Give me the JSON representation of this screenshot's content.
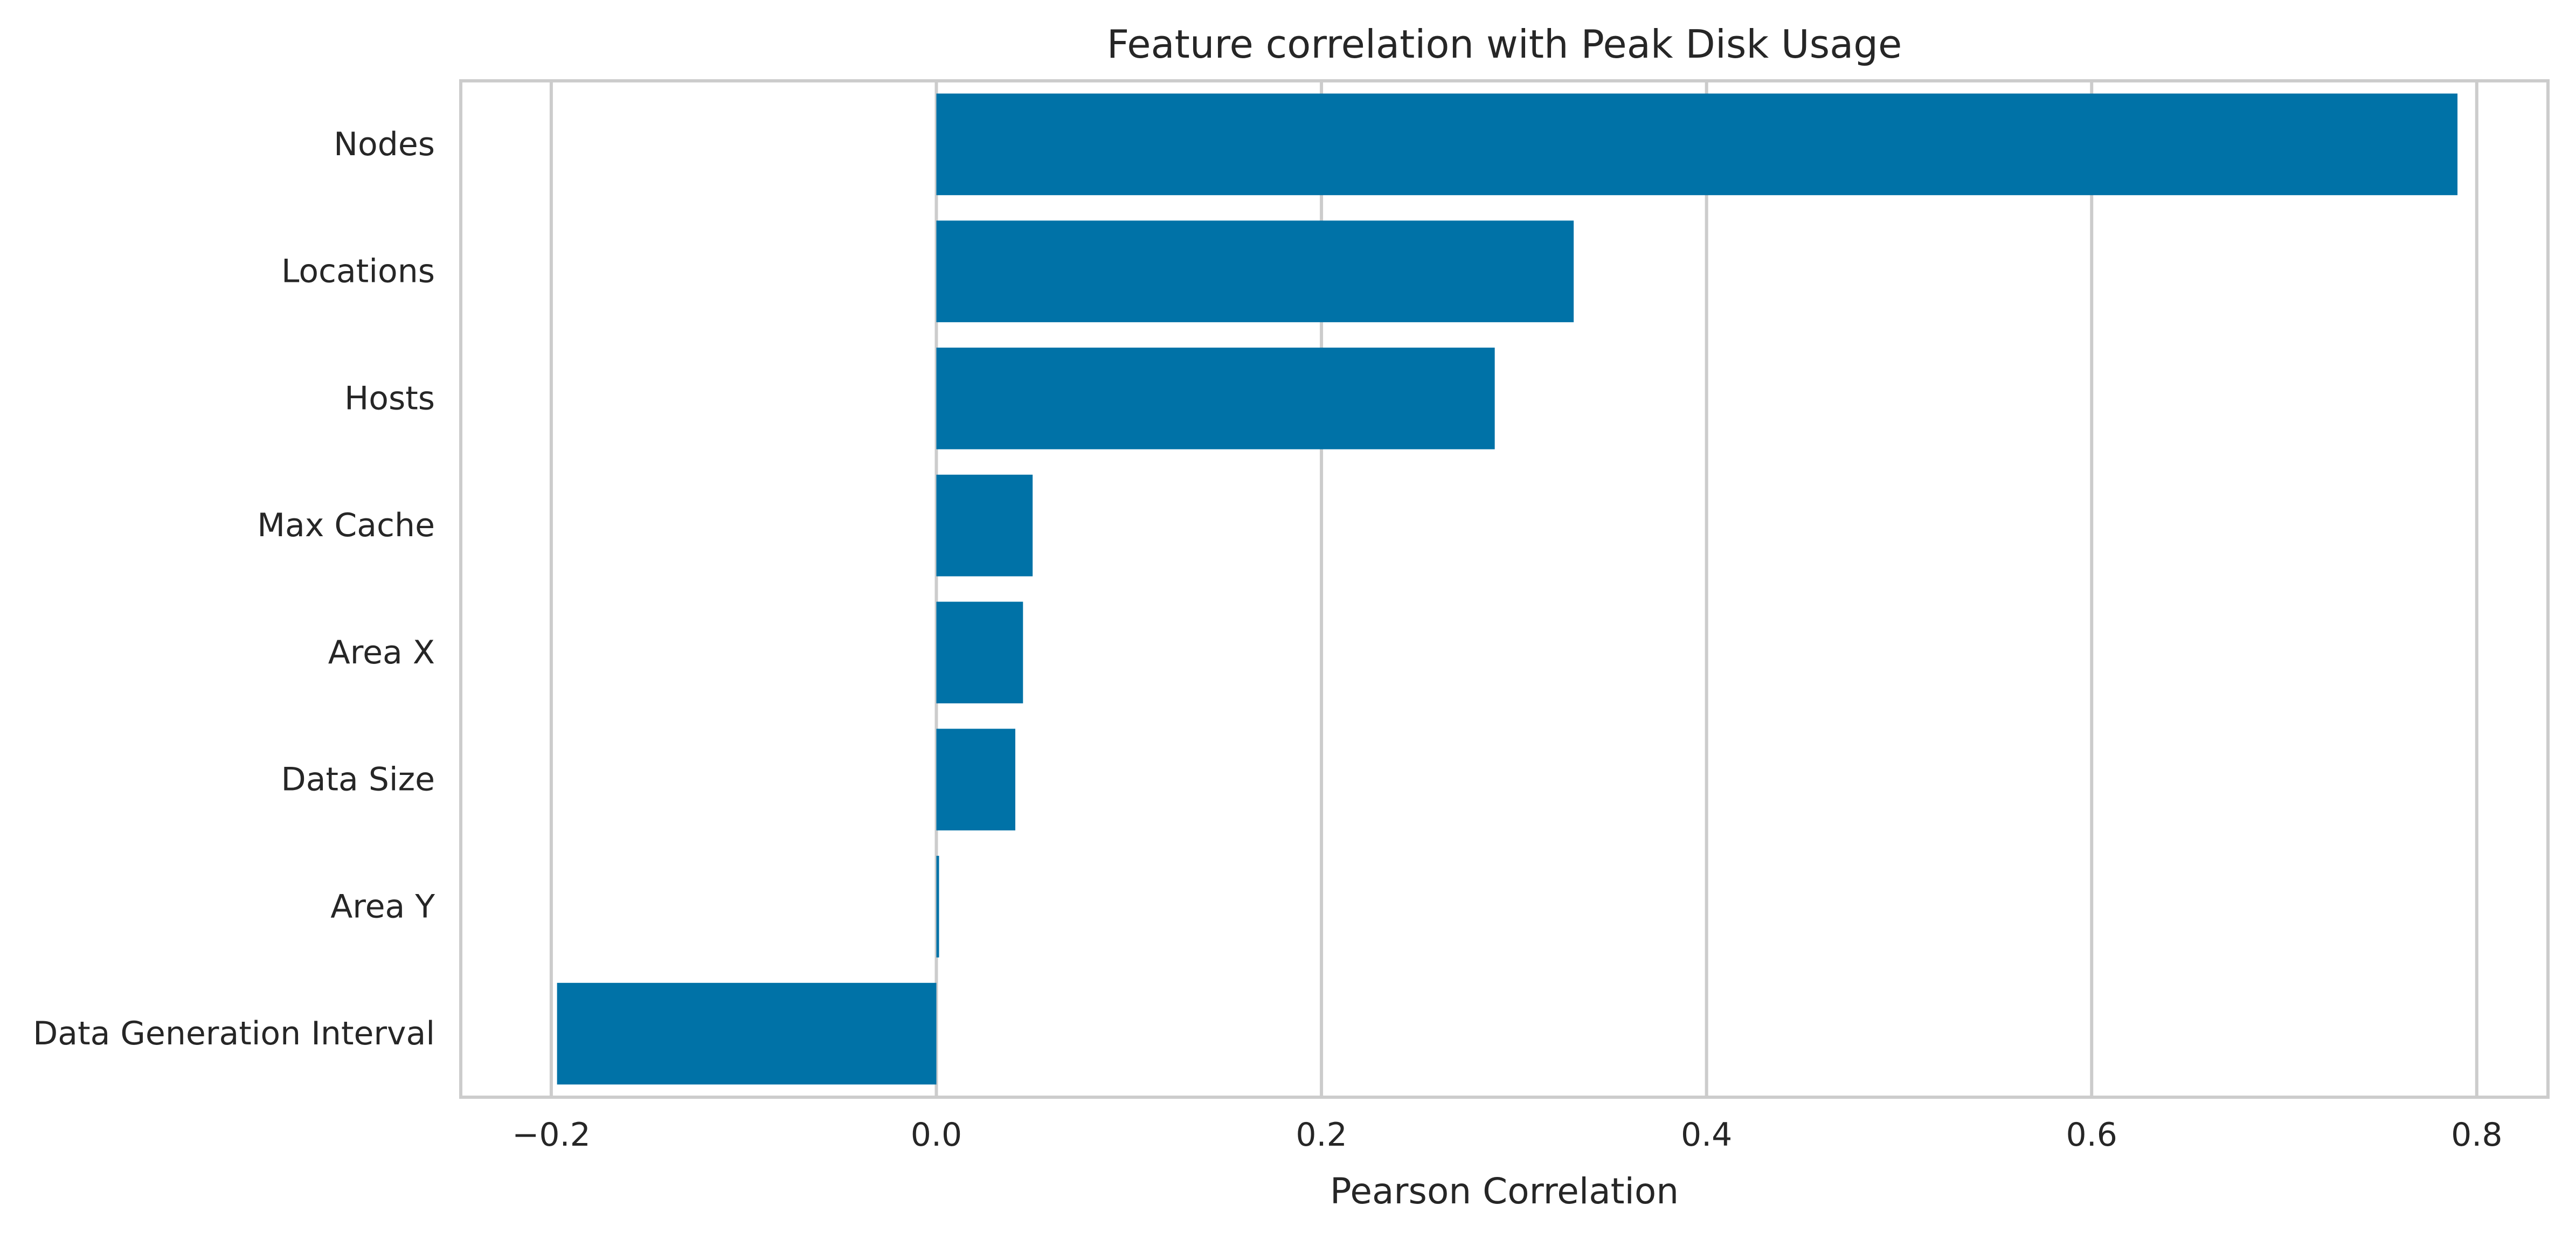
{
  "chart_data": {
    "type": "bar",
    "orientation": "horizontal",
    "title": "Feature correlation with Peak Disk Usage",
    "xlabel": "Pearson Correlation",
    "ylabel": "",
    "categories": [
      "Nodes",
      "Locations",
      "Hosts",
      "Max Cache",
      "Area X",
      "Data Size",
      "Area Y",
      "Data Generation Interval"
    ],
    "values": [
      0.79,
      0.331,
      0.29,
      0.05,
      0.045,
      0.041,
      0.001,
      -0.197
    ],
    "xlim": [
      -0.247,
      0.837
    ],
    "xticks": [
      -0.2,
      0.0,
      0.2,
      0.4,
      0.6,
      0.8
    ],
    "xtick_labels": [
      "−0.2",
      "0.0",
      "0.2",
      "0.4",
      "0.6",
      "0.8"
    ],
    "grid": "vertical",
    "bar_color": "#0072a7",
    "grid_color": "#cccccc"
  }
}
